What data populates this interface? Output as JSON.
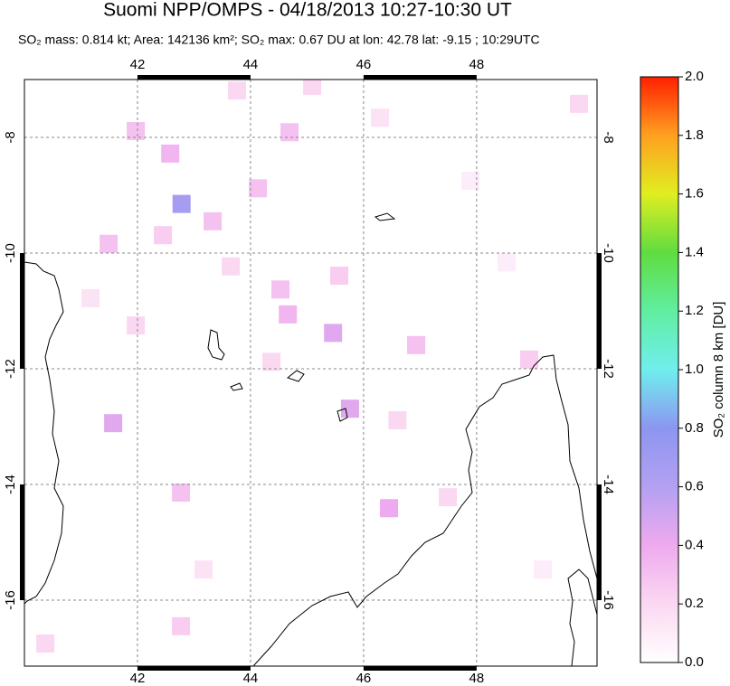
{
  "title": "Suomi NPP/OMPS - 04/18/2013 10:27-10:30 UT",
  "subtitle": "SO₂ mass: 0.814 kt; Area: 142136 km²; SO₂ max: 0.67 DU at lon: 42.78 lat: -9.15 ; 10:29UTC",
  "map": {
    "type": "grid",
    "lonlim": [
      40,
      50.13
    ],
    "latlim": [
      -17.14,
      -7
    ],
    "lonticks": [
      42,
      44,
      46,
      48
    ],
    "latticks": [
      -8,
      -10,
      -12,
      -14,
      -16
    ],
    "grid": true,
    "cells": {
      "lon": [
        42.78,
        41.97,
        42.58,
        41.49,
        43.33,
        44.66,
        45.46,
        45.76,
        41.57,
        46.45,
        43.76,
        45.09,
        44.13,
        44.69,
        42.45,
        43.65,
        42.77,
        46.93,
        48.93,
        40.37,
        42.77,
        45.57,
        44.53,
        46.29,
        49.81,
        47.49,
        43.17,
        46.6,
        41.17,
        41.97,
        48.53,
        49.17,
        47.89,
        44.37
      ],
      "lat": [
        -9.15,
        -7.89,
        -8.28,
        -9.84,
        -9.45,
        -11.06,
        -11.38,
        -12.69,
        -12.94,
        -14.41,
        -7.19,
        -7.11,
        -8.88,
        -7.91,
        -9.69,
        -10.23,
        -14.14,
        -11.59,
        -11.84,
        -16.75,
        -16.45,
        -10.39,
        -10.63,
        -7.66,
        -7.42,
        -14.22,
        -15.47,
        -12.89,
        -10.78,
        -11.25,
        -10.16,
        -15.47,
        -8.75,
        -11.88
      ],
      "values": [
        0.67,
        0.3,
        0.35,
        0.3,
        0.3,
        0.35,
        0.45,
        0.45,
        0.45,
        0.4,
        0.2,
        0.2,
        0.3,
        0.3,
        0.25,
        0.2,
        0.3,
        0.3,
        0.25,
        0.2,
        0.25,
        0.25,
        0.3,
        0.15,
        0.2,
        0.2,
        0.15,
        0.2,
        0.15,
        0.2,
        0.1,
        0.1,
        0.1,
        0.2
      ]
    }
  },
  "colorbar": {
    "label": "SO₂ column 8 km [DU]",
    "clim": [
      0,
      2
    ],
    "ticks": [
      {
        "value": 0,
        "label": "0.0"
      },
      {
        "value": 0.2,
        "label": "0.2"
      },
      {
        "value": 0.4,
        "label": "0.4"
      },
      {
        "value": 0.6,
        "label": "0.6"
      },
      {
        "value": 0.8,
        "label": "0.8"
      },
      {
        "value": 1,
        "label": "1.0"
      },
      {
        "value": 1.2,
        "label": "1.2"
      },
      {
        "value": 1.4,
        "label": "1.4"
      },
      {
        "value": 1.6,
        "label": "1.6"
      },
      {
        "value": 1.8,
        "label": "1.8"
      },
      {
        "value": 2,
        "label": "2.0"
      }
    ]
  }
}
